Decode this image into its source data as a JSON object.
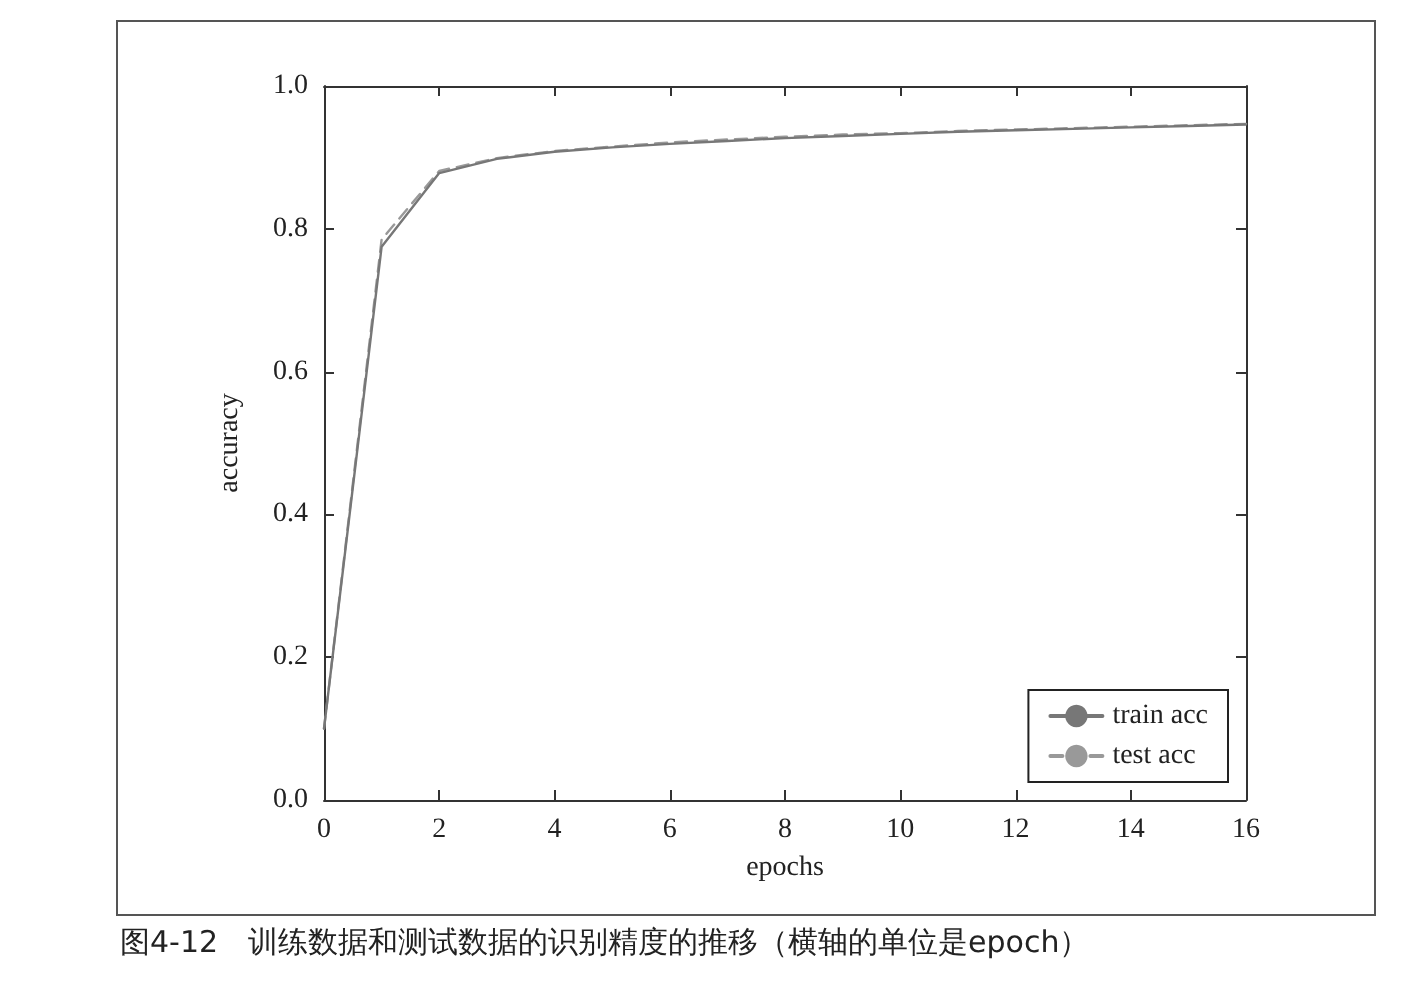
{
  "chart_data": {
    "type": "line",
    "xlabel": "epochs",
    "ylabel": "accuracy",
    "annotations": [
      "图4-12　训练数据和测试数据的识别精度的推移（横轴的单位是epoch）"
    ],
    "x": [
      0,
      1,
      2,
      3,
      4,
      5,
      6,
      7,
      8,
      9,
      10,
      11,
      12,
      13,
      14,
      15,
      16
    ],
    "series": [
      {
        "name": "train acc",
        "color": "#777777",
        "line_style": "solid",
        "values": [
          0.1,
          0.775,
          0.878,
          0.898,
          0.908,
          0.914,
          0.919,
          0.923,
          0.927,
          0.93,
          0.933,
          0.936,
          0.938,
          0.94,
          0.942,
          0.944,
          0.946
        ]
      },
      {
        "name": "test acc",
        "color": "#999999",
        "line_style": "dashed",
        "values": [
          0.1,
          0.785,
          0.881,
          0.899,
          0.909,
          0.915,
          0.921,
          0.925,
          0.929,
          0.932,
          0.934,
          0.937,
          0.939,
          0.941,
          0.943,
          0.945,
          0.947
        ]
      }
    ],
    "xlim": [
      0,
      16
    ],
    "xticks": [
      0,
      2,
      4,
      6,
      8,
      10,
      12,
      14,
      16
    ],
    "ylim": [
      0,
      1
    ],
    "yticks": [
      {
        "value": 0,
        "label": "0.0"
      },
      {
        "value": 0.2,
        "label": "0.2"
      },
      {
        "value": 0.4,
        "label": "0.4"
      },
      {
        "value": 0.6,
        "label": "0.6"
      },
      {
        "value": 0.8,
        "label": "0.8"
      },
      {
        "value": 1,
        "label": "1.0"
      }
    ],
    "legend": "bottom right",
    "grid": false,
    "marker": "none"
  }
}
